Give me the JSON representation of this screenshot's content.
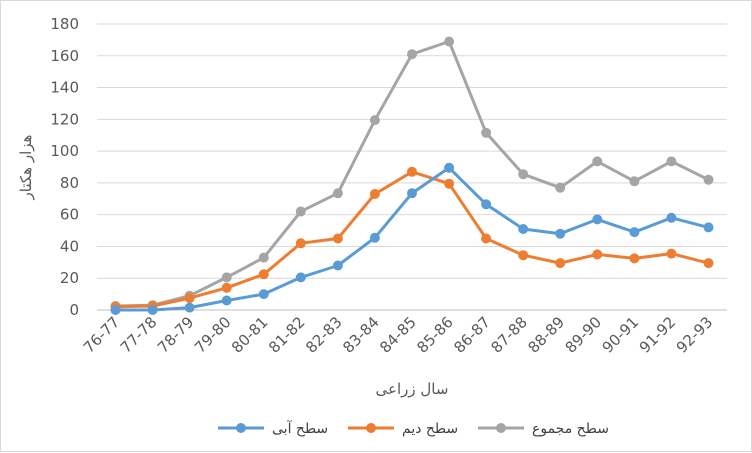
{
  "chart_data": {
    "type": "line",
    "categories": [
      "76-77",
      "77-78",
      "78-79",
      "79-80",
      "80-81",
      "81-82",
      "82-83",
      "83-84",
      "84-85",
      "85-86",
      "86-87",
      "87-88",
      "88-89",
      "89-90",
      "90-91",
      "91-92",
      "92-93"
    ],
    "series": [
      {
        "name": "سطح آبی",
        "color": "#5b9bd5",
        "values": [
          0,
          0,
          1.5,
          6,
          10,
          20.5,
          28,
          45.5,
          73.5,
          89.5,
          66.5,
          51,
          48,
          57,
          49,
          58,
          52
        ]
      },
      {
        "name": "سطح دیم",
        "color": "#ed7d31",
        "values": [
          2,
          2.5,
          7.5,
          14,
          22.5,
          42,
          45,
          73,
          87,
          79.5,
          45,
          34.5,
          29.5,
          35,
          32.5,
          35.5,
          29.5
        ]
      },
      {
        "name": "سطح مجموع",
        "color": "#a5a5a5",
        "values": [
          2.5,
          3,
          9,
          20.5,
          33,
          62,
          73.5,
          119.5,
          161,
          169,
          111.5,
          85.5,
          77,
          93.5,
          81,
          93.5,
          82
        ]
      }
    ],
    "xlabel": "سال زراعی",
    "ylabel": "هزار هکتار",
    "ylim": [
      0,
      180
    ],
    "yticks": [
      0,
      20,
      40,
      60,
      80,
      100,
      120,
      140,
      160,
      180
    ],
    "grid": true,
    "legend_position": "bottom"
  }
}
